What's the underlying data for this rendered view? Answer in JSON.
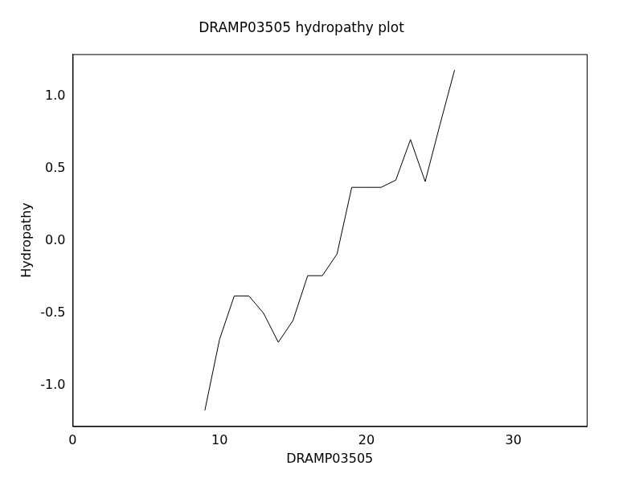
{
  "chart_data": {
    "type": "line",
    "title": "DRAMP03505 hydropathy plot",
    "x_label": "DRAMP03505",
    "y_label": "Hydropathy",
    "x": [
      9,
      10,
      11,
      12,
      13,
      14,
      15,
      16,
      17,
      18,
      19,
      20,
      21,
      22,
      23,
      24,
      25,
      26
    ],
    "values": [
      -1.17,
      -0.68,
      -0.38,
      -0.38,
      -0.5,
      -0.7,
      -0.55,
      -0.24,
      -0.24,
      -0.09,
      0.37,
      0.37,
      0.37,
      0.42,
      0.7,
      0.41,
      0.8,
      1.18
    ],
    "color": "#000000",
    "xlim": [
      0,
      35
    ],
    "xticks": [
      0,
      10,
      20,
      30
    ],
    "ylim": [
      -1.28,
      1.29
    ],
    "yticks": [
      {
        "value": -1.0,
        "label": "-1.0"
      },
      {
        "value": -0.5,
        "label": "-0.5"
      },
      {
        "value": 0,
        "label": "0.0"
      },
      {
        "value": 0.5,
        "label": "0.5"
      },
      {
        "value": 1.0,
        "label": "1.0"
      }
    ],
    "grid": false
  }
}
